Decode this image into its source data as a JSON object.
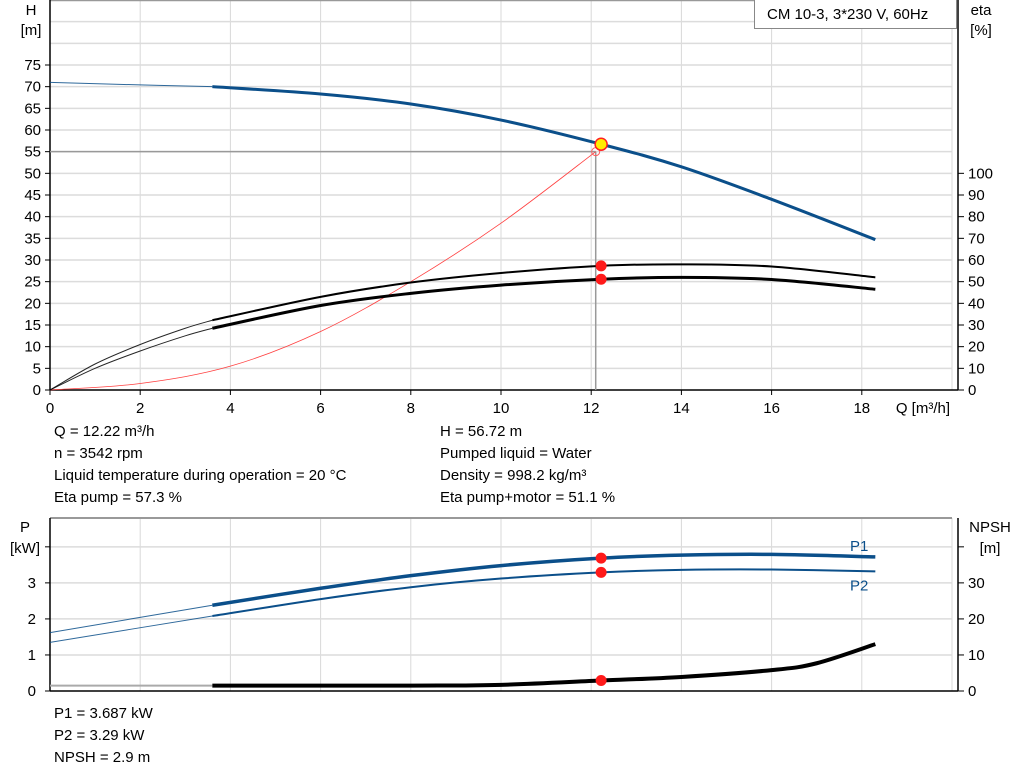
{
  "chart_data": [
    {
      "type": "line",
      "legend": "CM 10-3, 3*230 V, 60Hz",
      "legend_position": "top-right",
      "xlabel": "Q [m³/h]",
      "ylabel_left": [
        "H",
        "[m]"
      ],
      "ylabel_right": [
        "eta",
        "[%]"
      ],
      "xlim": [
        0,
        20
      ],
      "ylim_left": [
        0,
        90
      ],
      "ylim_right": [
        0,
        180
      ],
      "grid": true,
      "x_ticks": [
        0,
        2,
        4,
        6,
        8,
        10,
        12,
        14,
        16,
        18
      ],
      "y_ticks_left": [
        0,
        5,
        10,
        15,
        20,
        25,
        30,
        35,
        40,
        45,
        50,
        55,
        60,
        65,
        70,
        75
      ],
      "y_ticks_right": [
        0,
        10,
        20,
        30,
        40,
        50,
        60,
        70,
        80,
        90,
        100
      ],
      "series": [
        {
          "id": "H",
          "axis": "left",
          "color": "#0b4f8a",
          "x": [
            0,
            2,
            3.6,
            6,
            8,
            10,
            12.22,
            14,
            16,
            18.3
          ],
          "y": [
            71,
            70.4,
            70,
            68.3,
            66,
            62.3,
            56.72,
            51.5,
            44,
            34.7
          ]
        },
        {
          "id": "eta_pump",
          "axis": "right",
          "color": "#000000",
          "x": [
            0,
            1,
            2,
            3,
            3.6,
            6,
            8,
            10,
            12.22,
            14,
            16,
            18.3
          ],
          "y": [
            0,
            12,
            21,
            28.5,
            32.2,
            43,
            49.6,
            54,
            57.3,
            58,
            57,
            52
          ]
        },
        {
          "id": "eta_pump_motor",
          "axis": "right",
          "color": "#000000",
          "x": [
            0,
            1,
            2,
            3,
            3.6,
            6,
            8,
            10,
            12.22,
            14,
            16,
            18.3
          ],
          "y": [
            0,
            10,
            18,
            25,
            28.5,
            39,
            44.6,
            48.4,
            51.1,
            52,
            51,
            46.5
          ]
        },
        {
          "id": "system_curve",
          "axis": "left",
          "color": "#ff4040",
          "x": [
            0,
            2,
            4,
            6,
            8,
            10,
            12.1
          ],
          "y": [
            0,
            1.5,
            5.5,
            13.5,
            25,
            38.5,
            55
          ]
        }
      ],
      "operating_point": {
        "Q": 12.22,
        "H": 56.72,
        "eta_pump": 57.3,
        "eta_pump_motor": 51.1,
        "required_Q": 12.1,
        "required_H": 55
      }
    },
    {
      "type": "line",
      "xlim": [
        0,
        20
      ],
      "ylabel_left": [
        "P",
        "[kW]"
      ],
      "ylabel_right": [
        "NPSH",
        "[m]"
      ],
      "ylim_left": [
        0,
        4.8
      ],
      "ylim_right": [
        0,
        48
      ],
      "grid": true,
      "y_ticks_left": [
        0,
        1,
        2,
        3
      ],
      "y_ticks_right": [
        0,
        10,
        20,
        30
      ],
      "series": [
        {
          "name": "P1",
          "axis": "left",
          "color": "#0b4f8a",
          "x": [
            0,
            3.6,
            6,
            8,
            10,
            12.22,
            14,
            16,
            18.3
          ],
          "y": [
            1.62,
            2.38,
            2.85,
            3.2,
            3.48,
            3.687,
            3.77,
            3.79,
            3.72
          ]
        },
        {
          "name": "P2",
          "axis": "left",
          "color": "#0b4f8a",
          "x": [
            0,
            3.6,
            6,
            8,
            10,
            12.22,
            14,
            16,
            18.3
          ],
          "y": [
            1.35,
            2.08,
            2.55,
            2.88,
            3.12,
            3.29,
            3.36,
            3.37,
            3.32
          ]
        },
        {
          "id": "NPSH",
          "axis": "right",
          "color": "#000000",
          "x": [
            0,
            3.6,
            8,
            10,
            12.22,
            14,
            16,
            17,
            18.3
          ],
          "y": [
            1.5,
            1.5,
            1.5,
            1.7,
            2.9,
            3.9,
            5.8,
            7.7,
            13
          ]
        }
      ],
      "operating_point": {
        "Q": 12.22,
        "P1": 3.687,
        "P2": 3.29,
        "NPSH": 2.9
      }
    }
  ],
  "results_top": {
    "left": [
      "Q = 12.22 m³/h",
      "n = 3542 rpm",
      "Liquid temperature during operation = 20 °C",
      "Eta pump = 57.3 %"
    ],
    "right": [
      "H = 56.72 m",
      "Pumped liquid = Water",
      "Density = 998.2 kg/m³",
      "Eta pump+motor = 51.1 %"
    ]
  },
  "results_bottom": [
    "P1 = 3.687 kW",
    "P2 = 3.29 kW",
    "NPSH = 2.9 m"
  ]
}
